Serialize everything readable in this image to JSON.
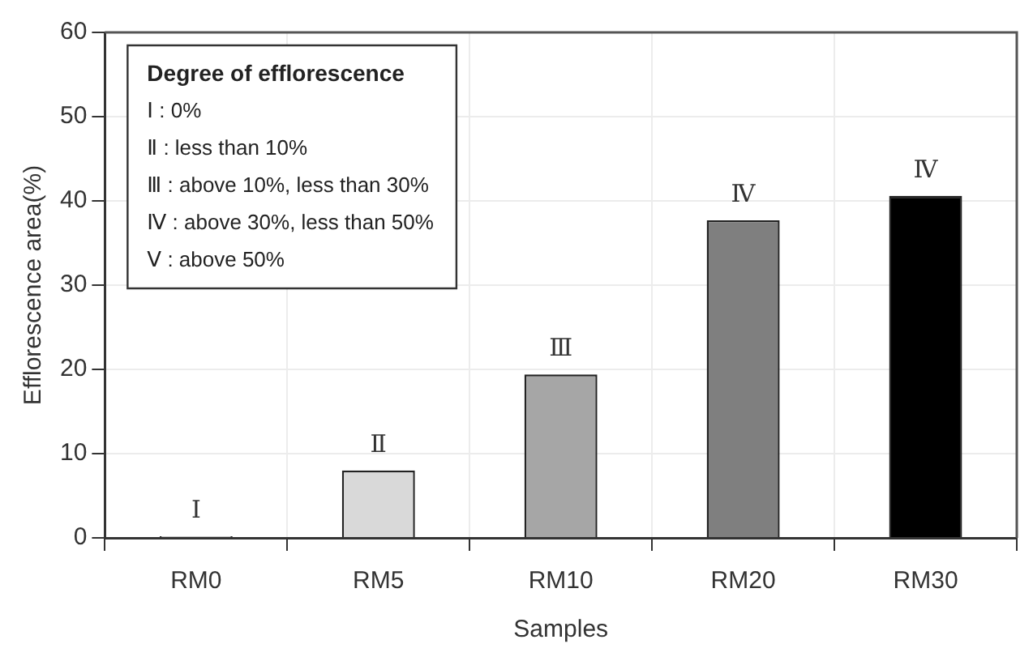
{
  "chart_data": {
    "type": "bar",
    "xlabel": "Samples",
    "ylabel": "Efflorescence area(%)",
    "categories": [
      "RM0",
      "RM5",
      "RM10",
      "RM20",
      "RM30"
    ],
    "values": [
      0.2,
      8.0,
      19.4,
      37.7,
      40.6
    ],
    "colors": [
      "#ffffff",
      "#d9d9d9",
      "#a6a6a6",
      "#7f7f7f",
      "#000000"
    ],
    "value_labels": [
      "Ⅰ",
      "Ⅱ",
      "Ⅲ",
      "Ⅳ",
      "Ⅳ"
    ],
    "ylim": [
      0,
      60
    ],
    "yticks": [
      0,
      10,
      20,
      30,
      40,
      50,
      60
    ],
    "grid": true,
    "annotations": [
      "Degree of efflorescence",
      "Ⅰ : 0%",
      "Ⅱ : less than 10%",
      "Ⅲ : above 10%, less than 30%",
      "Ⅳ : above 30%, less than 50%",
      "Ⅴ : above 50%"
    ]
  }
}
